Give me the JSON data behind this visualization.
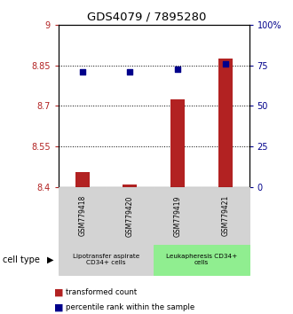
{
  "title": "GDS4079 / 7895280",
  "samples": [
    "GSM779418",
    "GSM779420",
    "GSM779419",
    "GSM779421"
  ],
  "bar_values": [
    8.455,
    8.408,
    8.725,
    8.875
  ],
  "bar_base": 8.4,
  "percentile_values": [
    71,
    71,
    73,
    76
  ],
  "ylim_left": [
    8.4,
    9.0
  ],
  "ylim_right": [
    0,
    100
  ],
  "yticks_left": [
    8.4,
    8.55,
    8.7,
    8.85,
    9.0
  ],
  "yticks_right": [
    0,
    25,
    50,
    75,
    100
  ],
  "ytick_left_labels": [
    "8.4",
    "8.55",
    "8.7",
    "8.85",
    "9"
  ],
  "ytick_right_labels": [
    "0",
    "25",
    "50",
    "75",
    "100%"
  ],
  "bar_color": "#b22222",
  "dot_color": "#00008b",
  "group1_label": "Lipotransfer aspirate\nCD34+ cells",
  "group2_label": "Leukapheresis CD34+\ncells",
  "group1_color": "#d3d3d3",
  "group2_color": "#90ee90",
  "legend_bar_label": "transformed count",
  "legend_dot_label": "percentile rank within the sample",
  "cell_type_label": "cell type"
}
